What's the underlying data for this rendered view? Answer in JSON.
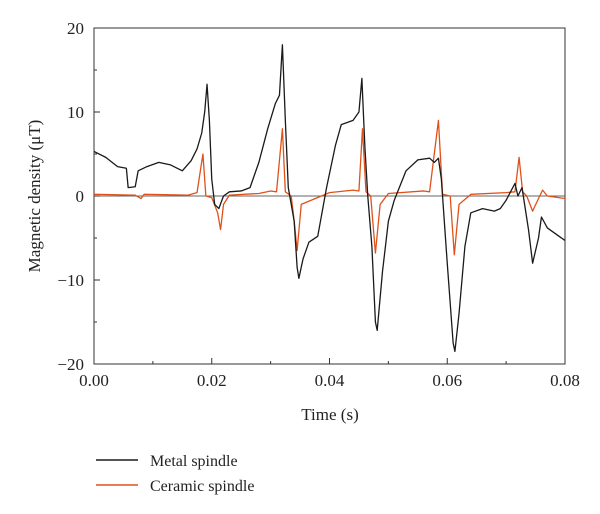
{
  "chart_data": {
    "type": "line",
    "title": "",
    "xlabel": "Time (s)",
    "ylabel": "Magnetic density (μT)",
    "xlim": [
      0,
      0.08
    ],
    "ylim": [
      -20,
      20
    ],
    "xticks": [
      0.0,
      0.02,
      0.04,
      0.06,
      0.08
    ],
    "xtick_labels": [
      "0.00",
      "0.02",
      "0.04",
      "0.06",
      "0.08"
    ],
    "yticks": [
      -20,
      -10,
      0,
      10,
      20
    ],
    "ytick_labels": [
      "−20",
      "−10",
      "0",
      "10",
      "20"
    ],
    "grid": false,
    "legend_position": "bottom-left, below plot",
    "series": [
      {
        "name": "Metal spindle",
        "color": "#1a1a1a",
        "points": [
          [
            0.0,
            5.3
          ],
          [
            0.002,
            4.6
          ],
          [
            0.004,
            3.5
          ],
          [
            0.0055,
            3.3
          ],
          [
            0.0058,
            1.0
          ],
          [
            0.007,
            1.1
          ],
          [
            0.0075,
            3.0
          ],
          [
            0.009,
            3.5
          ],
          [
            0.011,
            4.0
          ],
          [
            0.013,
            3.7
          ],
          [
            0.015,
            3.0
          ],
          [
            0.0165,
            4.2
          ],
          [
            0.0175,
            5.6
          ],
          [
            0.0183,
            7.5
          ],
          [
            0.0188,
            10.0
          ],
          [
            0.0192,
            13.3
          ],
          [
            0.0196,
            9.0
          ],
          [
            0.02,
            2.0
          ],
          [
            0.0205,
            -1.0
          ],
          [
            0.0212,
            -1.5
          ],
          [
            0.022,
            0.0
          ],
          [
            0.023,
            0.5
          ],
          [
            0.025,
            0.6
          ],
          [
            0.0265,
            1.0
          ],
          [
            0.028,
            4.0
          ],
          [
            0.0295,
            8.0
          ],
          [
            0.0308,
            11.0
          ],
          [
            0.0315,
            12.0
          ],
          [
            0.032,
            18.0
          ],
          [
            0.0325,
            9.0
          ],
          [
            0.033,
            1.0
          ],
          [
            0.034,
            -3.0
          ],
          [
            0.0345,
            -8.5
          ],
          [
            0.0348,
            -9.8
          ],
          [
            0.0355,
            -7.5
          ],
          [
            0.0365,
            -5.5
          ],
          [
            0.038,
            -4.8
          ],
          [
            0.0395,
            1.0
          ],
          [
            0.041,
            6.0
          ],
          [
            0.042,
            8.5
          ],
          [
            0.044,
            9.0
          ],
          [
            0.045,
            10.0
          ],
          [
            0.0455,
            14.0
          ],
          [
            0.046,
            6.0
          ],
          [
            0.0465,
            0.0
          ],
          [
            0.0472,
            -6.0
          ],
          [
            0.0478,
            -15.0
          ],
          [
            0.0481,
            -16.0
          ],
          [
            0.049,
            -9.0
          ],
          [
            0.05,
            -3.0
          ],
          [
            0.051,
            -0.5
          ],
          [
            0.053,
            3.0
          ],
          [
            0.055,
            4.3
          ],
          [
            0.057,
            4.5
          ],
          [
            0.0578,
            4.0
          ],
          [
            0.0585,
            4.5
          ],
          [
            0.059,
            2.0
          ],
          [
            0.06,
            -8.0
          ],
          [
            0.061,
            -17.5
          ],
          [
            0.0613,
            -18.5
          ],
          [
            0.062,
            -14.0
          ],
          [
            0.063,
            -6.0
          ],
          [
            0.064,
            -2.0
          ],
          [
            0.066,
            -1.5
          ],
          [
            0.068,
            -1.8
          ],
          [
            0.069,
            -1.5
          ],
          [
            0.07,
            -0.5
          ],
          [
            0.0715,
            1.5
          ],
          [
            0.072,
            0.0
          ],
          [
            0.0727,
            1.0
          ],
          [
            0.0738,
            -4.0
          ],
          [
            0.0745,
            -8.0
          ],
          [
            0.0755,
            -5.0
          ],
          [
            0.076,
            -2.5
          ],
          [
            0.077,
            -3.8
          ],
          [
            0.079,
            -4.8
          ],
          [
            0.08,
            -5.3
          ]
        ]
      },
      {
        "name": "Ceramic spindle",
        "color": "#e0511a",
        "points": [
          [
            0.0,
            0.2
          ],
          [
            0.007,
            0.1
          ],
          [
            0.008,
            -0.3
          ],
          [
            0.0085,
            0.2
          ],
          [
            0.016,
            0.1
          ],
          [
            0.0175,
            0.4
          ],
          [
            0.0185,
            5.0
          ],
          [
            0.019,
            0.0
          ],
          [
            0.02,
            -0.2
          ],
          [
            0.021,
            -2.0
          ],
          [
            0.0215,
            -4.0
          ],
          [
            0.022,
            -1.0
          ],
          [
            0.023,
            0.1
          ],
          [
            0.028,
            0.3
          ],
          [
            0.03,
            0.6
          ],
          [
            0.031,
            0.5
          ],
          [
            0.032,
            8.0
          ],
          [
            0.0325,
            0.5
          ],
          [
            0.0335,
            0.0
          ],
          [
            0.034,
            -3.0
          ],
          [
            0.0345,
            -6.5
          ],
          [
            0.0352,
            -1.0
          ],
          [
            0.04,
            0.4
          ],
          [
            0.044,
            0.7
          ],
          [
            0.045,
            0.6
          ],
          [
            0.0456,
            8.0
          ],
          [
            0.0462,
            0.5
          ],
          [
            0.047,
            0.0
          ],
          [
            0.0478,
            -6.8
          ],
          [
            0.0486,
            -1.0
          ],
          [
            0.05,
            0.3
          ],
          [
            0.056,
            0.6
          ],
          [
            0.057,
            0.5
          ],
          [
            0.0585,
            9.0
          ],
          [
            0.0592,
            0.2
          ],
          [
            0.0605,
            0.0
          ],
          [
            0.0612,
            -7.0
          ],
          [
            0.062,
            -1.0
          ],
          [
            0.064,
            0.2
          ],
          [
            0.07,
            0.4
          ],
          [
            0.0715,
            0.5
          ],
          [
            0.0722,
            4.6
          ],
          [
            0.0728,
            0.5
          ],
          [
            0.0735,
            0.0
          ],
          [
            0.0745,
            -1.8
          ],
          [
            0.0755,
            -0.3
          ],
          [
            0.0762,
            0.7
          ],
          [
            0.077,
            0.0
          ],
          [
            0.08,
            -0.3
          ]
        ]
      }
    ]
  }
}
